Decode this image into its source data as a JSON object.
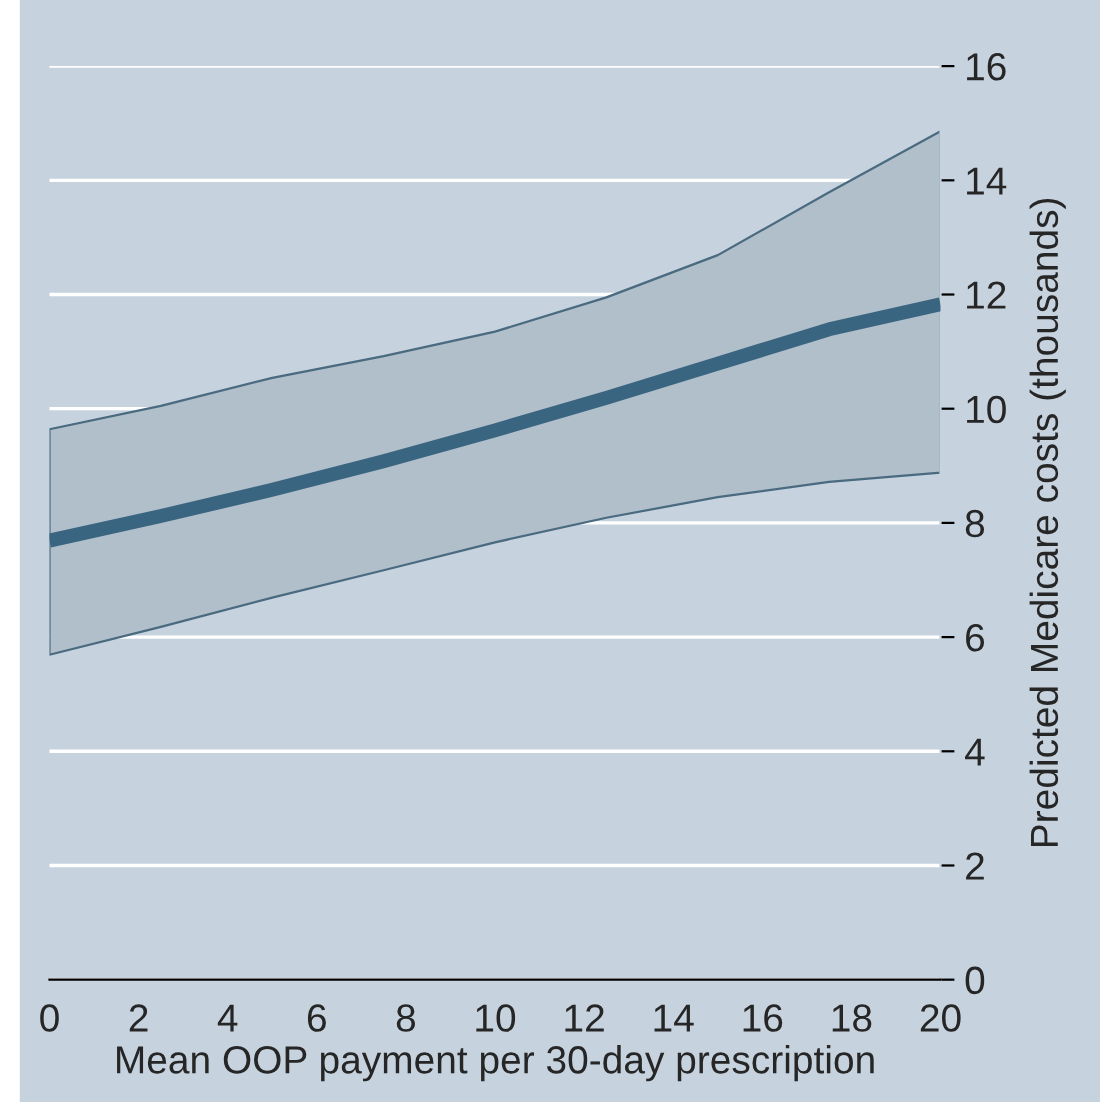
{
  "chart_data": {
    "type": "line",
    "xlabel": "Mean OOP payment per 30-day prescription",
    "ylabel": "Predicted Medicare costs (thousands)",
    "x": [
      0,
      2.5,
      5,
      7.5,
      10,
      12.5,
      15,
      17.5,
      20
    ],
    "series": [
      {
        "color": "#3a6580",
        "values": [
          7.69,
          8.12,
          8.58,
          9.08,
          9.62,
          10.19,
          10.79,
          11.39,
          11.83
        ],
        "lower": [
          5.69,
          6.18,
          6.69,
          7.17,
          7.66,
          8.09,
          8.45,
          8.72,
          8.88
        ],
        "upper": [
          9.64,
          10.05,
          10.54,
          10.92,
          11.35,
          11.95,
          12.69,
          13.79,
          14.86
        ]
      }
    ],
    "xlim": [
      0,
      20
    ],
    "xticks": [
      0,
      2,
      4,
      6,
      8,
      10,
      12,
      14,
      16,
      18,
      20
    ],
    "ylim": [
      0,
      16
    ],
    "yticks": [
      0,
      2,
      4,
      6,
      8,
      10,
      12,
      14,
      16
    ],
    "grid": "y",
    "line_style": "solid"
  }
}
